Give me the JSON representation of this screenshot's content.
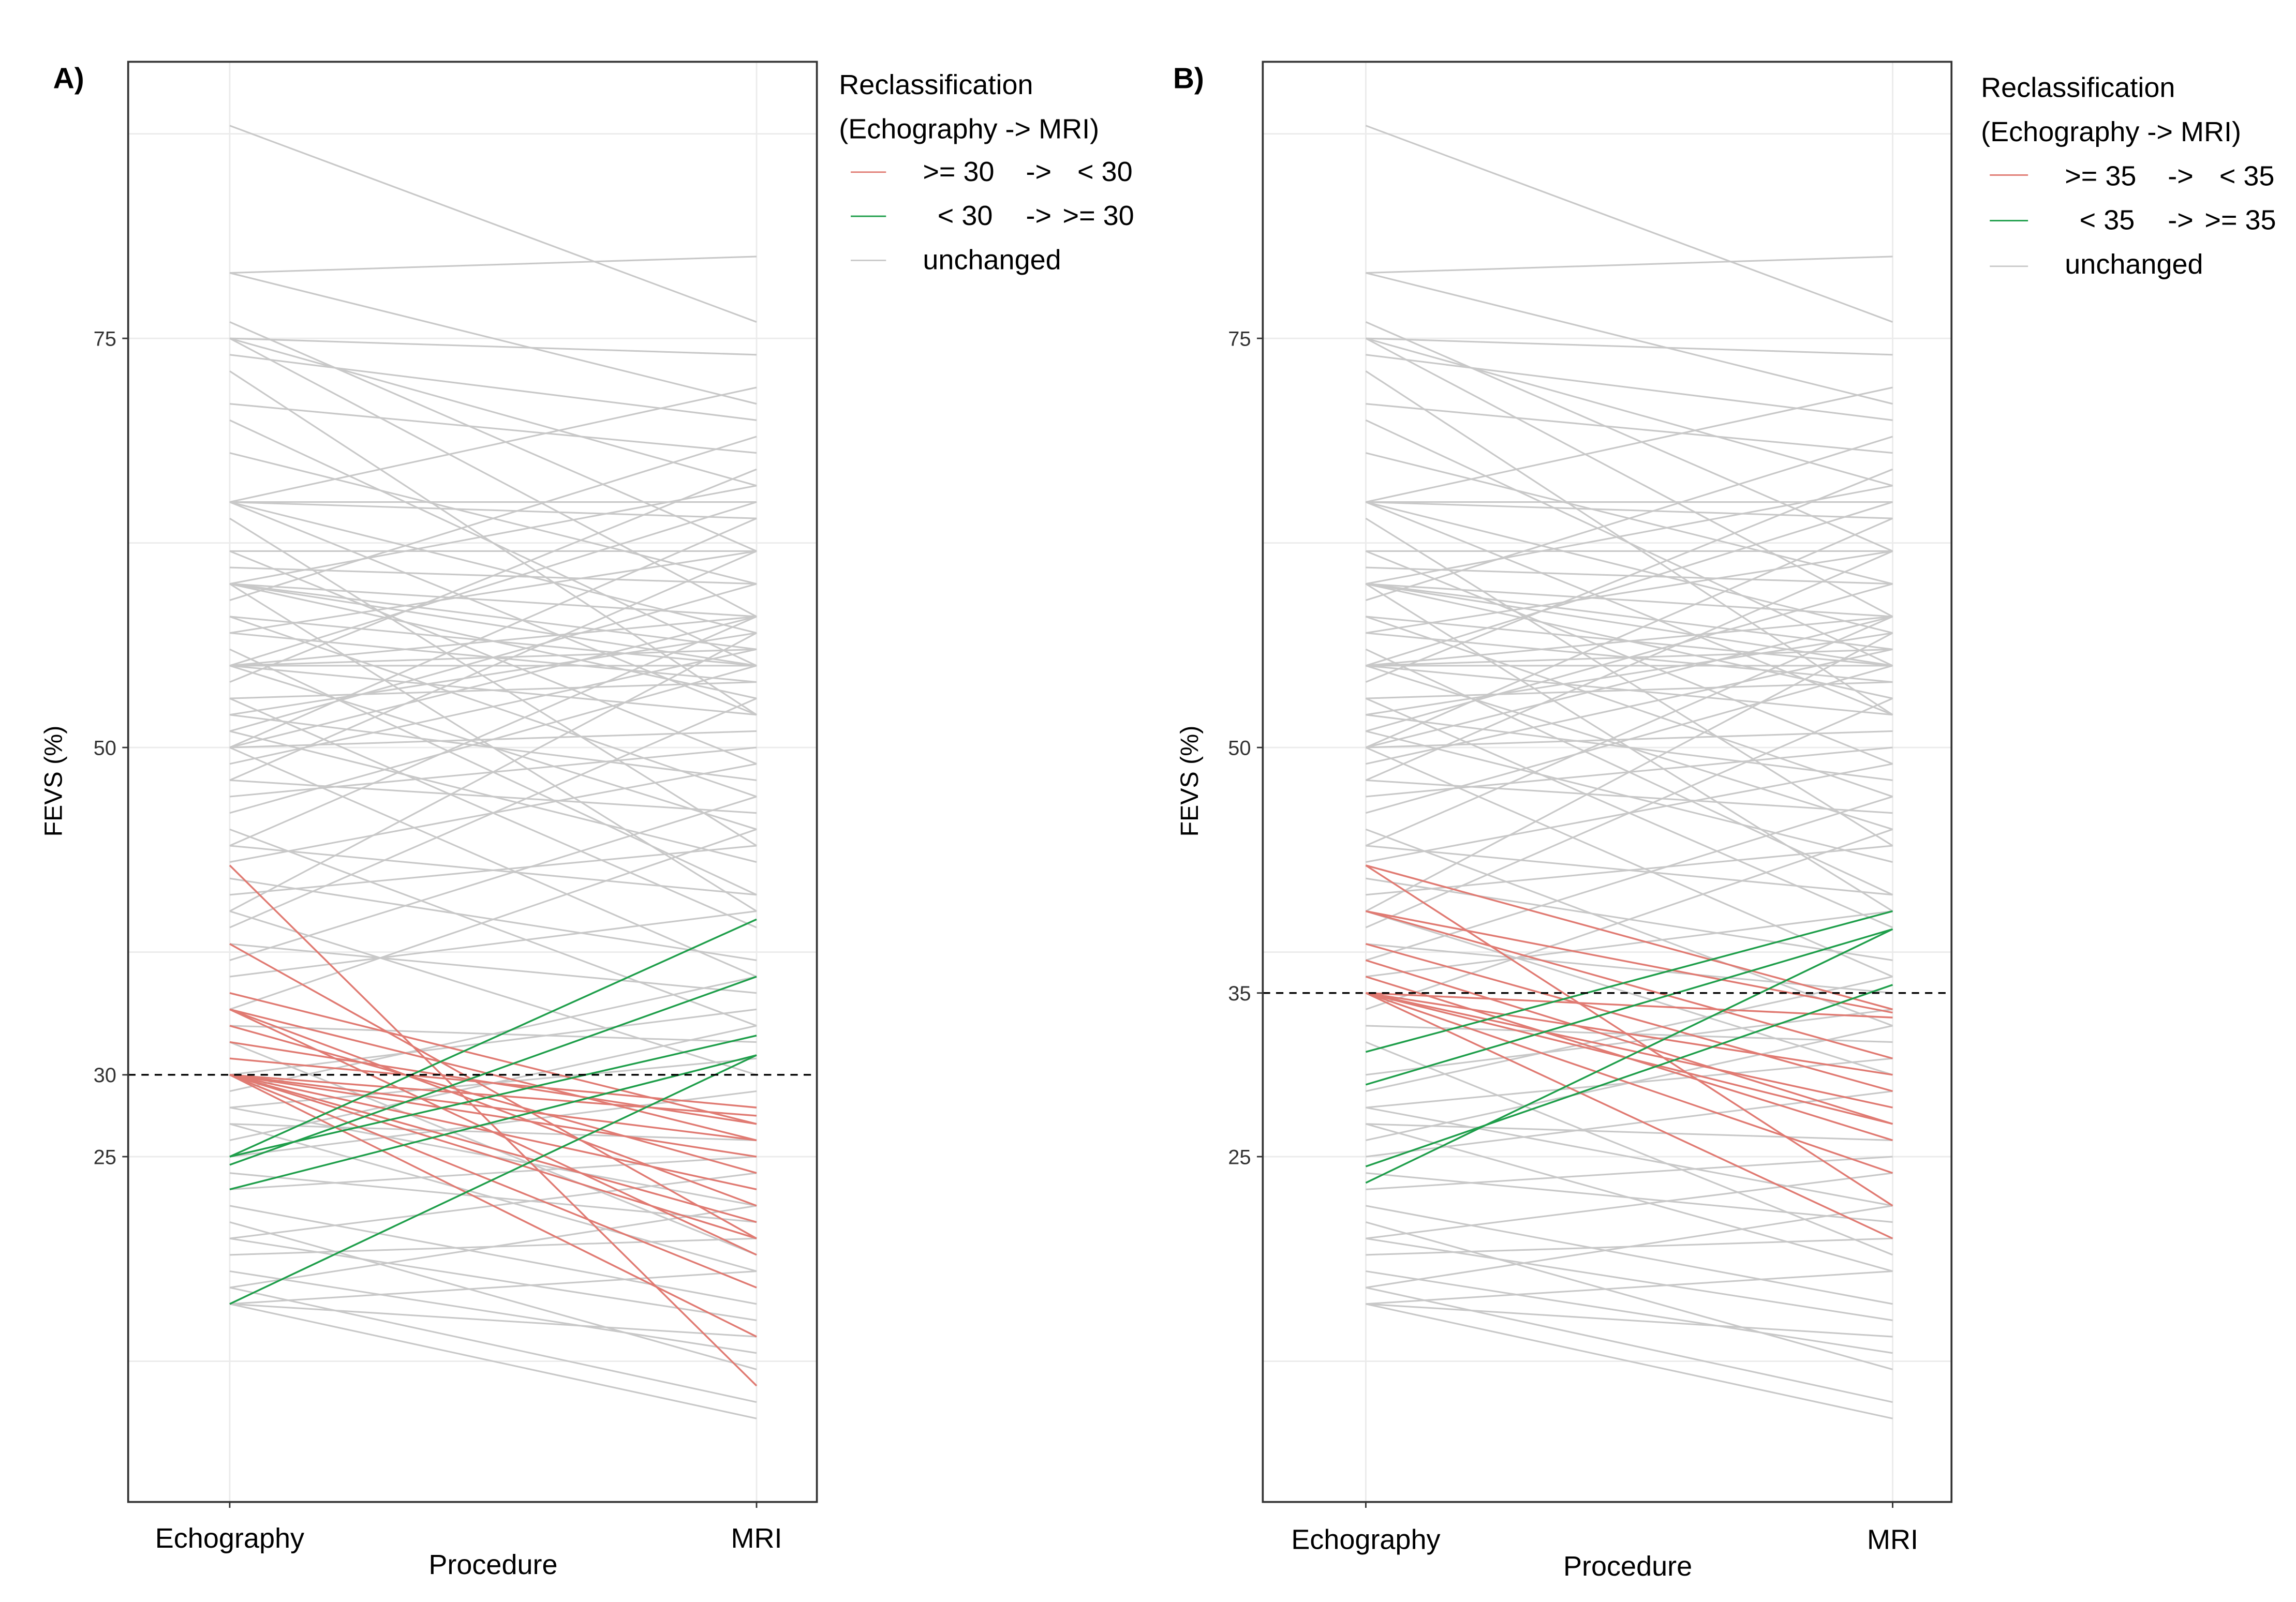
{
  "chart_data": [
    {
      "type": "line",
      "panel_label": "A)",
      "xlabel": "Procedure",
      "ylabel": "FEVS (%)",
      "categories": [
        "Echography",
        "MRI"
      ],
      "y_ticks": [
        "75",
        "50",
        "30",
        "25"
      ],
      "y_tick_values": [
        75,
        50,
        30,
        25
      ],
      "ylim": [
        3.9,
        91.9
      ],
      "threshold": 30,
      "grid": true,
      "legend": {
        "title_line1": "Reclassification",
        "title_line2": "(Echography -> MRI)",
        "position": "right",
        "entries": [
          {
            "label_from": ">= 30",
            "arrow": "->",
            "label_to": "< 30",
            "color": "#E07A72"
          },
          {
            "label_from": "< 30",
            "arrow": "->",
            "label_to": ">= 30",
            "color": "#1E9E4A"
          },
          {
            "label": "unchanged",
            "color": "#C8C8C8"
          }
        ]
      },
      "series": [
        {
          "name": ">= 30 -> < 30",
          "color": "#E07A72",
          "pairs": [
            [
              42.8,
              11
            ],
            [
              38,
              20
            ],
            [
              34,
              26
            ],
            [
              34,
              22
            ],
            [
              34,
              19
            ],
            [
              33,
              24
            ],
            [
              32,
              27
            ],
            [
              30,
              27.5
            ],
            [
              30,
              26
            ],
            [
              30,
              25
            ],
            [
              30,
              23
            ],
            [
              30,
              21
            ],
            [
              30,
              20
            ],
            [
              30,
              17
            ],
            [
              30,
              14
            ],
            [
              31,
              28
            ],
            [
              35,
              27
            ]
          ]
        },
        {
          "name": "< 30 -> >= 30",
          "color": "#1E9E4A",
          "pairs": [
            [
              25,
              39.5
            ],
            [
              24.5,
              36
            ],
            [
              25,
              32.4
            ],
            [
              23,
              31.2
            ],
            [
              16,
              31.2
            ]
          ]
        }
      ]
    },
    {
      "type": "line",
      "panel_label": "B)",
      "xlabel": "Procedure",
      "ylabel": "FEVS (%)",
      "categories": [
        "Echography",
        "MRI"
      ],
      "y_ticks": [
        "75",
        "50",
        "35",
        "25"
      ],
      "y_tick_values": [
        75,
        50,
        35,
        25
      ],
      "ylim": [
        3.9,
        91.9
      ],
      "threshold": 35,
      "grid": true,
      "legend": {
        "title_line1": "Reclassification",
        "title_line2": "(Echography -> MRI)",
        "position": "right",
        "entries": [
          {
            "label_from": ">= 35",
            "arrow": "->",
            "label_to": "< 35",
            "color": "#E07A72"
          },
          {
            "label_from": "< 35",
            "arrow": "->",
            "label_to": ">= 35",
            "color": "#1E9E4A"
          },
          {
            "label": "unchanged",
            "color": "#C8C8C8"
          }
        ]
      },
      "series": [
        {
          "name": ">= 35 -> < 35",
          "color": "#E07A72",
          "pairs": [
            [
              42.8,
              34
            ],
            [
              42.8,
              22
            ],
            [
              40,
              31
            ],
            [
              40,
              33.8
            ],
            [
              38,
              29
            ],
            [
              37,
              27
            ],
            [
              36,
              26
            ],
            [
              35,
              33.5
            ],
            [
              35,
              30
            ],
            [
              35,
              28
            ],
            [
              35,
              27
            ],
            [
              35,
              24
            ],
            [
              35,
              20
            ]
          ]
        },
        {
          "name": "< 35 -> >= 35",
          "color": "#1E9E4A",
          "pairs": [
            [
              31.4,
              40
            ],
            [
              29.4,
              38.9
            ],
            [
              24.4,
              35.5
            ],
            [
              23.4,
              38.9
            ]
          ]
        }
      ]
    }
  ],
  "unchanged_pairs": [
    [
      88,
      76
    ],
    [
      79,
      80
    ],
    [
      79,
      71
    ],
    [
      76,
      62
    ],
    [
      75,
      74
    ],
    [
      75,
      66
    ],
    [
      75,
      58
    ],
    [
      74,
      70
    ],
    [
      73,
      52
    ],
    [
      71,
      68
    ],
    [
      70,
      55
    ],
    [
      68,
      60
    ],
    [
      65,
      72
    ],
    [
      65,
      65
    ],
    [
      65,
      64
    ],
    [
      65,
      57
    ],
    [
      65,
      52
    ],
    [
      64,
      44
    ],
    [
      62,
      62
    ],
    [
      62,
      49
    ],
    [
      61,
      60
    ],
    [
      60,
      66
    ],
    [
      60,
      58
    ],
    [
      60,
      56
    ],
    [
      60,
      55
    ],
    [
      60,
      53
    ],
    [
      60,
      40
    ],
    [
      59,
      69
    ],
    [
      58,
      55
    ],
    [
      58,
      47
    ],
    [
      57,
      62
    ],
    [
      57,
      54
    ],
    [
      56,
      41
    ],
    [
      55,
      65
    ],
    [
      55,
      58
    ],
    [
      55,
      56
    ],
    [
      55,
      55
    ],
    [
      55,
      52
    ],
    [
      55,
      45
    ],
    [
      54,
      67
    ],
    [
      53,
      54
    ],
    [
      53,
      39
    ],
    [
      52,
      57
    ],
    [
      52,
      48
    ],
    [
      51,
      60
    ],
    [
      51,
      43
    ],
    [
      50,
      64
    ],
    [
      50,
      58
    ],
    [
      50,
      51
    ],
    [
      50,
      36
    ],
    [
      49,
      56
    ],
    [
      48,
      62
    ],
    [
      48,
      46
    ],
    [
      47,
      50
    ],
    [
      46,
      55
    ],
    [
      45,
      33
    ],
    [
      44,
      58
    ],
    [
      44,
      41
    ],
    [
      43,
      49
    ],
    [
      42,
      37
    ],
    [
      41,
      44
    ],
    [
      40,
      57
    ],
    [
      40,
      30
    ],
    [
      39,
      53
    ],
    [
      38,
      35
    ],
    [
      37,
      47
    ],
    [
      36,
      40
    ],
    [
      34,
      45
    ],
    [
      33,
      32
    ],
    [
      32,
      19
    ],
    [
      30,
      34
    ],
    [
      29,
      36
    ],
    [
      28,
      22
    ],
    [
      28,
      31
    ],
    [
      27,
      26
    ],
    [
      27,
      18
    ],
    [
      26,
      33
    ],
    [
      25,
      29
    ],
    [
      24,
      21
    ],
    [
      23,
      25
    ],
    [
      22,
      16
    ],
    [
      21,
      12
    ],
    [
      20,
      24
    ],
    [
      20,
      15
    ],
    [
      19,
      20
    ],
    [
      18,
      13
    ],
    [
      17,
      10
    ],
    [
      16,
      14
    ],
    [
      16,
      9
    ],
    [
      16,
      18
    ],
    [
      17,
      22
    ]
  ]
}
